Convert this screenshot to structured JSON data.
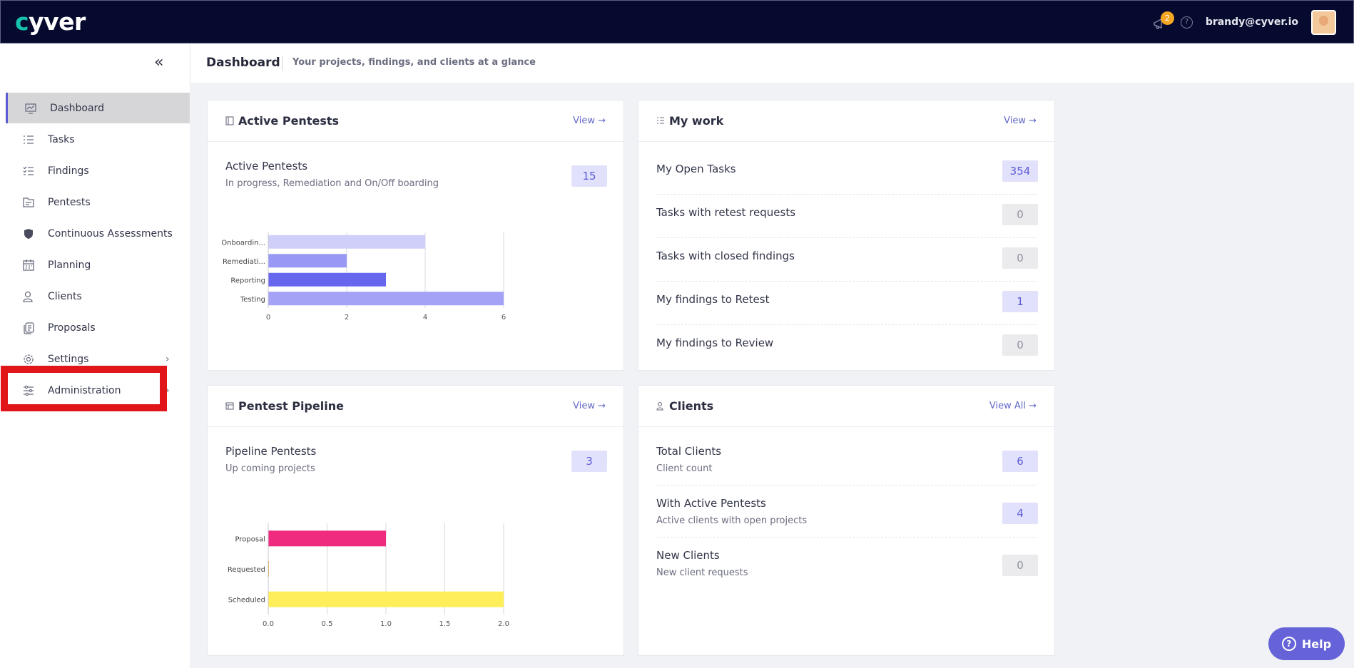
{
  "app": {
    "logo_prefix": "c",
    "logo_rest": "yver",
    "notification_count": "2",
    "help_glyph": "?",
    "user_email": "brandy@cyver.io"
  },
  "header": {
    "collapse_glyph": "«",
    "title": "Dashboard",
    "subtitle": "Your projects, findings, and clients at a glance"
  },
  "sidebar": {
    "items": [
      {
        "label": "Dashboard",
        "icon": "dashboard-icon"
      },
      {
        "label": "Tasks",
        "icon": "tasks-icon"
      },
      {
        "label": "Findings",
        "icon": "findings-icon"
      },
      {
        "label": "Pentests",
        "icon": "pentests-icon"
      },
      {
        "label": "Continuous Assessments",
        "icon": "shield-icon"
      },
      {
        "label": "Planning",
        "icon": "calendar-icon"
      },
      {
        "label": "Clients",
        "icon": "clients-icon"
      },
      {
        "label": "Proposals",
        "icon": "proposals-icon"
      },
      {
        "label": "Settings",
        "icon": "gear-icon",
        "chevron": "›"
      },
      {
        "label": "Administration",
        "icon": "sliders-icon",
        "chevron": "›"
      }
    ]
  },
  "cards": {
    "active_pentests": {
      "title": "Active Pentests",
      "view": "View →",
      "stat_label": "Active Pentests",
      "stat_sub": "In progress, Remediation and On/Off boarding",
      "stat_value": "15"
    },
    "my_work": {
      "title": "My work",
      "view": "View →",
      "rows": [
        {
          "label": "My Open Tasks",
          "value": "354"
        },
        {
          "label": "Tasks with retest requests",
          "value": "0"
        },
        {
          "label": "Tasks with closed findings",
          "value": "0"
        },
        {
          "label": "My findings to Retest",
          "value": "1"
        },
        {
          "label": "My findings to Review",
          "value": "0"
        }
      ]
    },
    "pipeline": {
      "title": "Pentest Pipeline",
      "view": "View →",
      "stat_label": "Pipeline Pentests",
      "stat_sub": "Up coming projects",
      "stat_value": "3"
    },
    "clients": {
      "title": "Clients",
      "view": "View All →",
      "rows": [
        {
          "label": "Total Clients",
          "sub": "Client count",
          "value": "6"
        },
        {
          "label": "With Active Pentests",
          "sub": "Active clients with open projects",
          "value": "4"
        },
        {
          "label": "New Clients",
          "sub": "New client requests",
          "value": "0"
        }
      ]
    }
  },
  "help_button": {
    "label": "Help",
    "glyph": "?"
  },
  "chart_data": [
    {
      "type": "bar",
      "orientation": "horizontal",
      "categories": [
        "Onboardin...",
        "Remediati...",
        "Reporting",
        "Testing"
      ],
      "values": [
        4,
        2,
        3,
        6
      ],
      "colors": [
        "#d0cff9",
        "#9a98f5",
        "#6766ef",
        "#a3a2f6"
      ],
      "xlim": [
        0,
        6
      ],
      "xticks": [
        "0",
        "2",
        "4",
        "6"
      ],
      "xtick_values": [
        0,
        2,
        4,
        6
      ],
      "title": "",
      "xlabel": "",
      "ylabel": ""
    },
    {
      "type": "bar",
      "orientation": "horizontal",
      "categories": [
        "Proposal",
        "Requested",
        "Scheduled"
      ],
      "values": [
        1,
        0,
        2
      ],
      "colors": [
        "#ef2b7f",
        "#f0a020",
        "#fdee5a"
      ],
      "xlim": [
        0,
        2
      ],
      "xticks": [
        "0.0",
        "0.5",
        "1.0",
        "1.5",
        "2.0"
      ],
      "xtick_values": [
        0,
        0.5,
        1,
        1.5,
        2
      ],
      "title": "",
      "xlabel": "",
      "ylabel": ""
    }
  ]
}
